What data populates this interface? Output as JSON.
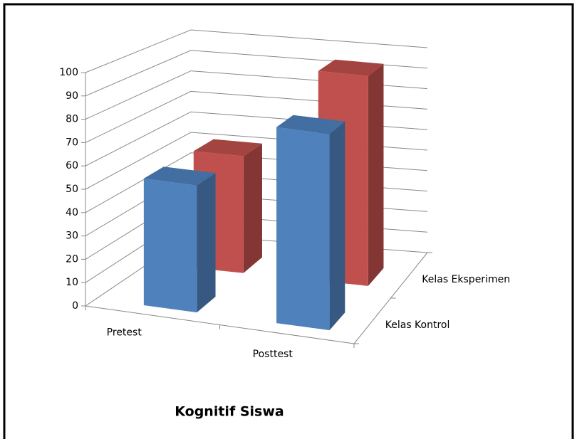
{
  "chart_data": {
    "type": "bar3d",
    "title": "Kognitif Siswa",
    "categories": [
      "Pretest",
      "Posttest"
    ],
    "series": [
      {
        "name": "Kelas Kontrol",
        "color": "#4f81bd",
        "values": [
          55,
          85
        ]
      },
      {
        "name": "Kelas Eksperimen",
        "color": "#c0504d",
        "values": [
          54,
          97
        ]
      }
    ],
    "ylim": [
      0,
      100
    ],
    "yticks": [
      0,
      10,
      20,
      30,
      40,
      50,
      60,
      70,
      80,
      90,
      100
    ],
    "grid": true
  }
}
